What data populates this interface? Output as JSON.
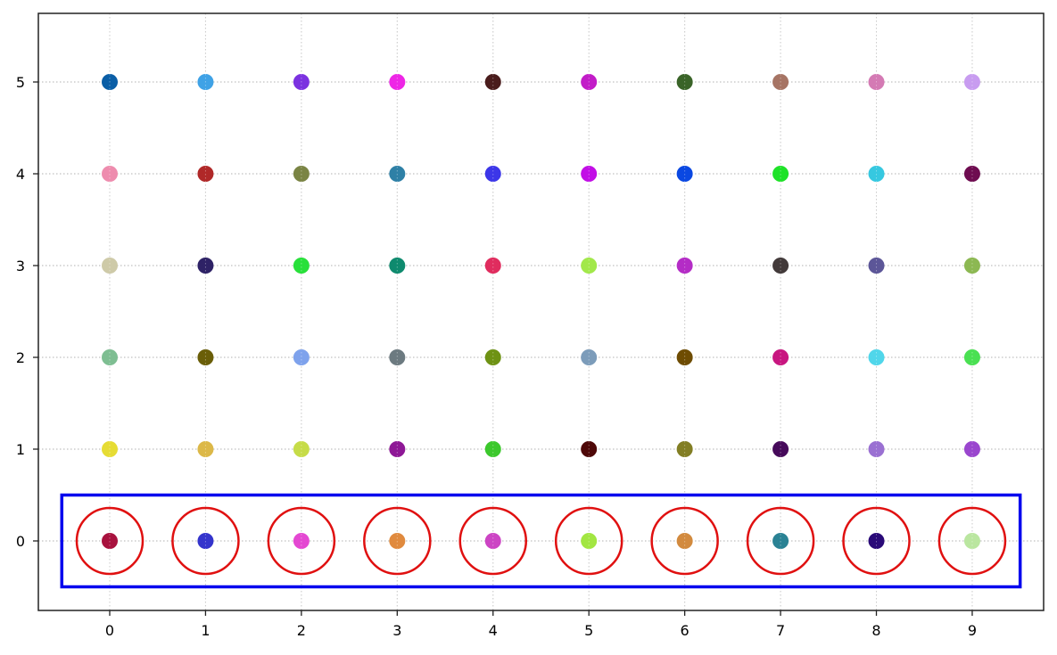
{
  "chart_data": {
    "type": "scatter",
    "title": "",
    "xlabel": "",
    "ylabel": "",
    "xlim": [
      -0.75,
      9.75
    ],
    "ylim": [
      -0.75,
      5.75
    ],
    "grid": true,
    "grid_style": "dotted",
    "legend": null,
    "x_ticks": [
      "0",
      "1",
      "2",
      "3",
      "4",
      "5",
      "6",
      "7",
      "8",
      "9"
    ],
    "y_ticks": [
      "0",
      "1",
      "2",
      "3",
      "4",
      "5"
    ],
    "points": [
      {
        "x": 0,
        "y": 5,
        "color": "#0a5ea6"
      },
      {
        "x": 1,
        "y": 5,
        "color": "#3fa2e6"
      },
      {
        "x": 2,
        "y": 5,
        "color": "#7b32e0"
      },
      {
        "x": 3,
        "y": 5,
        "color": "#ee26e6"
      },
      {
        "x": 4,
        "y": 5,
        "color": "#4a1c1c"
      },
      {
        "x": 5,
        "y": 5,
        "color": "#c21cc8"
      },
      {
        "x": 6,
        "y": 5,
        "color": "#3a6428"
      },
      {
        "x": 7,
        "y": 5,
        "color": "#a67464"
      },
      {
        "x": 8,
        "y": 5,
        "color": "#d47ab4"
      },
      {
        "x": 9,
        "y": 5,
        "color": "#c89cf0"
      },
      {
        "x": 0,
        "y": 4,
        "color": "#ee8cae"
      },
      {
        "x": 1,
        "y": 4,
        "color": "#b02828"
      },
      {
        "x": 2,
        "y": 4,
        "color": "#7a8444"
      },
      {
        "x": 3,
        "y": 4,
        "color": "#2e80a6"
      },
      {
        "x": 4,
        "y": 4,
        "color": "#3c36e8"
      },
      {
        "x": 5,
        "y": 4,
        "color": "#c20ee6"
      },
      {
        "x": 6,
        "y": 4,
        "color": "#0a48e2"
      },
      {
        "x": 7,
        "y": 4,
        "color": "#1ee228"
      },
      {
        "x": 8,
        "y": 4,
        "color": "#36c8e0"
      },
      {
        "x": 9,
        "y": 4,
        "color": "#6e0c50"
      },
      {
        "x": 0,
        "y": 3,
        "color": "#cecaa8"
      },
      {
        "x": 1,
        "y": 3,
        "color": "#2e2266"
      },
      {
        "x": 2,
        "y": 3,
        "color": "#28e03a"
      },
      {
        "x": 3,
        "y": 3,
        "color": "#0e8a6e"
      },
      {
        "x": 4,
        "y": 3,
        "color": "#e02c5e"
      },
      {
        "x": 5,
        "y": 3,
        "color": "#a2e84a"
      },
      {
        "x": 6,
        "y": 3,
        "color": "#b42cc6"
      },
      {
        "x": 7,
        "y": 3,
        "color": "#423a3a"
      },
      {
        "x": 8,
        "y": 3,
        "color": "#5c5698"
      },
      {
        "x": 9,
        "y": 3,
        "color": "#8cb852"
      },
      {
        "x": 0,
        "y": 2,
        "color": "#7ebe92"
      },
      {
        "x": 1,
        "y": 2,
        "color": "#6a5e08"
      },
      {
        "x": 2,
        "y": 2,
        "color": "#7ea2ec"
      },
      {
        "x": 3,
        "y": 2,
        "color": "#6c7a80"
      },
      {
        "x": 4,
        "y": 2,
        "color": "#6e9214"
      },
      {
        "x": 5,
        "y": 2,
        "color": "#7c9cba"
      },
      {
        "x": 6,
        "y": 2,
        "color": "#6e4c02"
      },
      {
        "x": 7,
        "y": 2,
        "color": "#c81680"
      },
      {
        "x": 8,
        "y": 2,
        "color": "#50d6ea"
      },
      {
        "x": 9,
        "y": 2,
        "color": "#4ae052"
      },
      {
        "x": 0,
        "y": 1,
        "color": "#e6dc34"
      },
      {
        "x": 1,
        "y": 1,
        "color": "#dcb848"
      },
      {
        "x": 2,
        "y": 1,
        "color": "#c6dc48"
      },
      {
        "x": 3,
        "y": 1,
        "color": "#8e1896"
      },
      {
        "x": 4,
        "y": 1,
        "color": "#3cc82c"
      },
      {
        "x": 5,
        "y": 1,
        "color": "#4e0808"
      },
      {
        "x": 6,
        "y": 1,
        "color": "#827e24"
      },
      {
        "x": 7,
        "y": 1,
        "color": "#460a5a"
      },
      {
        "x": 8,
        "y": 1,
        "color": "#9a70d2"
      },
      {
        "x": 9,
        "y": 1,
        "color": "#9a46ce"
      },
      {
        "x": 0,
        "y": 0,
        "color": "#a8123e"
      },
      {
        "x": 1,
        "y": 0,
        "color": "#3434cc"
      },
      {
        "x": 2,
        "y": 0,
        "color": "#e448d2"
      },
      {
        "x": 3,
        "y": 0,
        "color": "#e08a3e"
      },
      {
        "x": 4,
        "y": 0,
        "color": "#cc44c4"
      },
      {
        "x": 5,
        "y": 0,
        "color": "#a2e642"
      },
      {
        "x": 6,
        "y": 0,
        "color": "#d28a3e"
      },
      {
        "x": 7,
        "y": 0,
        "color": "#2a8294"
      },
      {
        "x": 8,
        "y": 0,
        "color": "#2a0a78"
      },
      {
        "x": 9,
        "y": 0,
        "color": "#bae6a0"
      }
    ],
    "annotations": {
      "highlight_rectangle": {
        "x0": -0.5,
        "x1": 9.5,
        "y0": -0.5,
        "y1": 0.5,
        "color": "#0000ee"
      },
      "highlight_circles": {
        "y": 0,
        "x": [
          0,
          1,
          2,
          3,
          4,
          5,
          6,
          7,
          8,
          9
        ],
        "radius_px": 37,
        "color": "#e01010"
      }
    }
  },
  "style": {
    "axes_color": "#222222",
    "grid_color": "#b0b0b0",
    "rect_color": "#0000ee",
    "circle_color": "#e01010"
  }
}
